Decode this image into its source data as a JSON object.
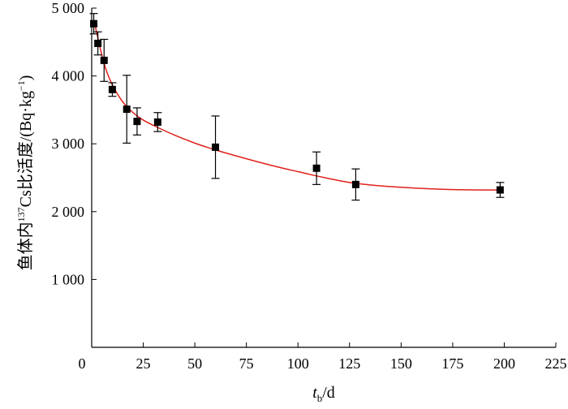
{
  "chart_data": {
    "type": "scatter",
    "xlabel": {
      "main": "t",
      "sub": "b",
      "rest": "/d"
    },
    "ylabel": {
      "pre": "鱼体内",
      "sup": "137",
      "mid": "Cs比活度/(Bq·kg",
      "sup2": "−1",
      "post": ")"
    },
    "xlim": [
      0,
      225
    ],
    "ylim": [
      0,
      5000
    ],
    "xticks": [
      0,
      25,
      50,
      75,
      100,
      125,
      150,
      175,
      200,
      225
    ],
    "xtick_labels": [
      "0",
      "25",
      "50",
      "75",
      "100",
      "125",
      "150",
      "175",
      "200",
      "225"
    ],
    "yticks": [
      1000,
      2000,
      3000,
      4000,
      5000
    ],
    "ytick_labels": [
      "1 000",
      "2 000",
      "3 000",
      "4 000",
      "5 000"
    ],
    "grid": false,
    "series": [
      {
        "points": [
          {
            "x": 1,
            "y": 4770,
            "err": 150
          },
          {
            "x": 3,
            "y": 4480,
            "err": 170
          },
          {
            "x": 6,
            "y": 4230,
            "err": 310
          },
          {
            "x": 10,
            "y": 3800,
            "err": 100
          },
          {
            "x": 17,
            "y": 3510,
            "err": 500
          },
          {
            "x": 22,
            "y": 3330,
            "err": 200
          },
          {
            "x": 32,
            "y": 3320,
            "err": 140
          },
          {
            "x": 60,
            "y": 2950,
            "err": 460
          },
          {
            "x": 109,
            "y": 2640,
            "err": 240
          },
          {
            "x": 128,
            "y": 2400,
            "err": 230
          },
          {
            "x": 198,
            "y": 2320,
            "err": 110
          }
        ]
      }
    ],
    "fit_curve": {
      "color": "#e0201b",
      "points": [
        [
          1,
          4830
        ],
        [
          3,
          4560
        ],
        [
          5,
          4300
        ],
        [
          7,
          4090
        ],
        [
          10,
          3870
        ],
        [
          15,
          3620
        ],
        [
          20,
          3460
        ],
        [
          25,
          3350
        ],
        [
          30,
          3270
        ],
        [
          40,
          3130
        ],
        [
          50,
          3010
        ],
        [
          60,
          2910
        ],
        [
          75,
          2780
        ],
        [
          90,
          2660
        ],
        [
          100,
          2590
        ],
        [
          110,
          2520
        ],
        [
          125,
          2430
        ],
        [
          140,
          2380
        ],
        [
          155,
          2350
        ],
        [
          170,
          2330
        ],
        [
          185,
          2320
        ],
        [
          198,
          2320
        ]
      ]
    },
    "marker_color": "#000000"
  }
}
